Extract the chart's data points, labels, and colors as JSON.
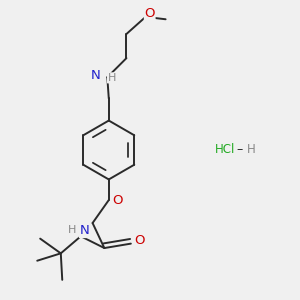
{
  "bg_color": "#f0f0f0",
  "bond_color": "#2a2a2a",
  "atom_colors": {
    "O": "#cc0000",
    "N": "#2222cc",
    "H": "#888888",
    "C": "#2a2a2a",
    "Cl": "#22aa22"
  }
}
